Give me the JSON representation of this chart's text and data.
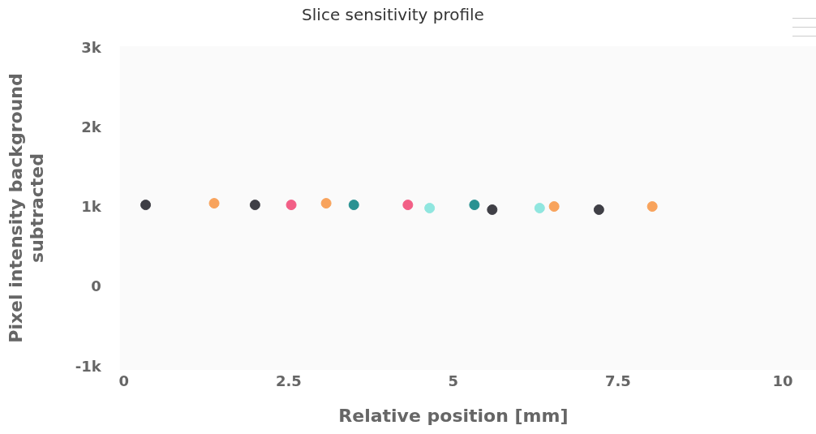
{
  "chart_data": {
    "type": "scatter",
    "title": "Slice sensitivity profile",
    "xlabel": "Relative position [mm]",
    "ylabel": "Pixel intensity background subtracted",
    "xlim": [
      0,
      10
    ],
    "xticks": [
      0,
      2.5,
      5,
      7.5,
      10
    ],
    "ylim": [
      -1000,
      3000
    ],
    "yticks": [
      {
        "value": -1000,
        "label": "-1k"
      },
      {
        "value": 0,
        "label": "0"
      },
      {
        "value": 1000,
        "label": "1k"
      },
      {
        "value": 2000,
        "label": "2k"
      },
      {
        "value": 3000,
        "label": "3k"
      }
    ],
    "grid": false,
    "legend": false,
    "marker": "circle",
    "series": [
      {
        "color": "#3f3f46",
        "x": [
          0.33,
          1.99,
          5.59,
          7.21
        ],
        "values": [
          1040,
          1040,
          980,
          980
        ]
      },
      {
        "color": "#f8a35c",
        "x": [
          1.37,
          3.07,
          6.53,
          8.02
        ],
        "values": [
          1060,
          1060,
          1020,
          1020
        ]
      },
      {
        "color": "#f25f86",
        "x": [
          2.54,
          4.31
        ],
        "values": [
          1040,
          1040
        ]
      },
      {
        "color": "#2a9292",
        "x": [
          3.49,
          5.32
        ],
        "values": [
          1040,
          1040
        ]
      },
      {
        "color": "#90e6df",
        "x": [
          4.64,
          6.31
        ],
        "values": [
          1000,
          1000
        ]
      }
    ]
  }
}
